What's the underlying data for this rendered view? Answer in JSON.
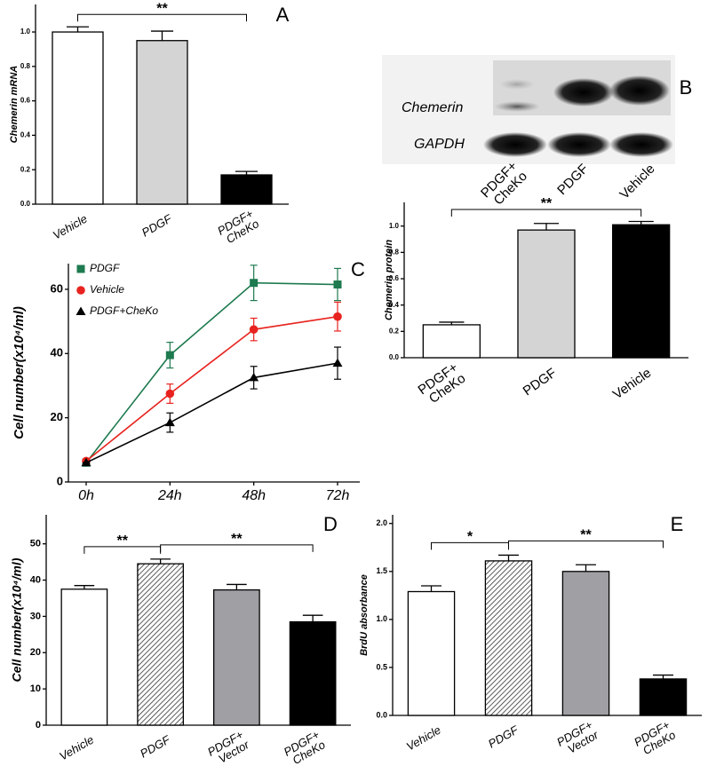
{
  "chart_data": [
    {
      "type": "bar",
      "y_label": "Chemerin mRNA",
      "categories": [
        "Vehicle",
        "PDGF",
        [
          "PDGF+",
          "CheKo"
        ]
      ],
      "values": [
        1.0,
        0.95,
        0.17
      ],
      "errors": [
        0.03,
        0.055,
        0.02
      ],
      "fills": [
        "#ffffff",
        "#d4d4d4",
        "#000000"
      ],
      "hatched": [
        false,
        false,
        false
      ],
      "ylim": [
        0,
        1.16
      ],
      "yticks": [
        {
          "value": 0,
          "label": "0.0"
        },
        0.2,
        0.4,
        0.6,
        0.8,
        {
          "value": 1,
          "label": "1.0"
        }
      ],
      "annotations": [
        {
          "text": "**",
          "from": 0,
          "to": 2
        }
      ],
      "panel": "A"
    },
    {
      "type": "bar",
      "y_label": "Chemerin protein",
      "categories": [
        [
          "PDGF+",
          "CheKo"
        ],
        "PDGF",
        "Vehicle"
      ],
      "values": [
        0.25,
        0.97,
        1.01
      ],
      "errors": [
        0.02,
        0.05,
        0.025
      ],
      "fills": [
        "#ffffff",
        "#d4d4d4",
        "#000000"
      ],
      "hatched": [
        false,
        false,
        false
      ],
      "ylim": [
        0,
        1.18
      ],
      "yticks": [
        {
          "value": 0,
          "label": "0.0"
        },
        0.2,
        0.4,
        0.6,
        0.8,
        {
          "value": 1,
          "label": "1.0"
        }
      ],
      "annotations": [
        {
          "text": "**",
          "from": 0,
          "to": 2
        }
      ]
    },
    {
      "type": "line",
      "y_label": "Cell number(x10⁴/ml)",
      "categories": [
        "0h",
        "24h",
        "48h",
        "72h"
      ],
      "series": [
        {
          "name": "PDGF",
          "color": "#1e7a4f",
          "marker": "square",
          "values": [
            6,
            39.5,
            62,
            61.5
          ],
          "errors": [
            0,
            4,
            5.5,
            5
          ]
        },
        {
          "name": "Vehicle",
          "color": "#e8231f",
          "marker": "circle",
          "values": [
            6.5,
            27.5,
            47.5,
            51.5
          ],
          "errors": [
            0,
            3,
            3.5,
            4.5
          ]
        },
        {
          "name": "PDGF+CheKo",
          "color": "#000000",
          "marker": "triangle",
          "values": [
            6,
            18.5,
            32.5,
            37
          ],
          "errors": [
            0,
            3,
            3.5,
            5
          ]
        }
      ],
      "ylim": [
        0,
        68
      ],
      "yticks": [
        0,
        20,
        40,
        60
      ],
      "panel": "C"
    },
    {
      "type": "bar",
      "y_label": "Cell number(x10⁴/ml)",
      "categories": [
        "Vehicle",
        "PDGF",
        [
          "PDGF+",
          "Vector"
        ],
        [
          "PDGF+",
          "CheKo"
        ]
      ],
      "values": [
        37.5,
        44.5,
        37.3,
        28.5
      ],
      "errors": [
        1,
        1.3,
        1.5,
        1.8
      ],
      "fills": [
        "#ffffff",
        "#ffffff",
        "#a0a0a4",
        "#000000"
      ],
      "hatched": [
        false,
        true,
        false,
        false
      ],
      "ylim": [
        0,
        58
      ],
      "yticks": [
        0,
        10,
        20,
        30,
        40,
        50
      ],
      "annotations": [
        {
          "text": "**",
          "from": 0,
          "to": 1
        },
        {
          "text": "**",
          "from": 1,
          "to": 3
        }
      ],
      "panel": "D"
    },
    {
      "type": "bar",
      "y_label": "BrdU absorbance",
      "categories": [
        "Vehicle",
        "PDGF",
        [
          "PDGF+",
          "Vector"
        ],
        [
          "PDGF+",
          "CheKo"
        ]
      ],
      "values": [
        1.29,
        1.61,
        1.5,
        0.38
      ],
      "errors": [
        0.06,
        0.06,
        0.07,
        0.04
      ],
      "fills": [
        "#ffffff",
        "#ffffff",
        "#a0a0a4",
        "#000000"
      ],
      "hatched": [
        false,
        true,
        false,
        false
      ],
      "ylim": [
        0,
        2.09
      ],
      "yticks": [
        {
          "value": 0,
          "label": "0.0"
        },
        0.5,
        {
          "value": 1,
          "label": "1.0"
        },
        1.5,
        {
          "value": 2,
          "label": "2.0"
        }
      ],
      "annotations": [
        {
          "text": "*",
          "from": 0,
          "to": 1
        },
        {
          "text": "**",
          "from": 1,
          "to": 3
        }
      ],
      "panel": "E"
    }
  ],
  "blot": {
    "rows": [
      "Chemerin",
      "GAPDH"
    ],
    "lanes": [
      [
        "PDGF+",
        "CheKo"
      ],
      "PDGF",
      "Vehicle"
    ],
    "panel": "B"
  }
}
